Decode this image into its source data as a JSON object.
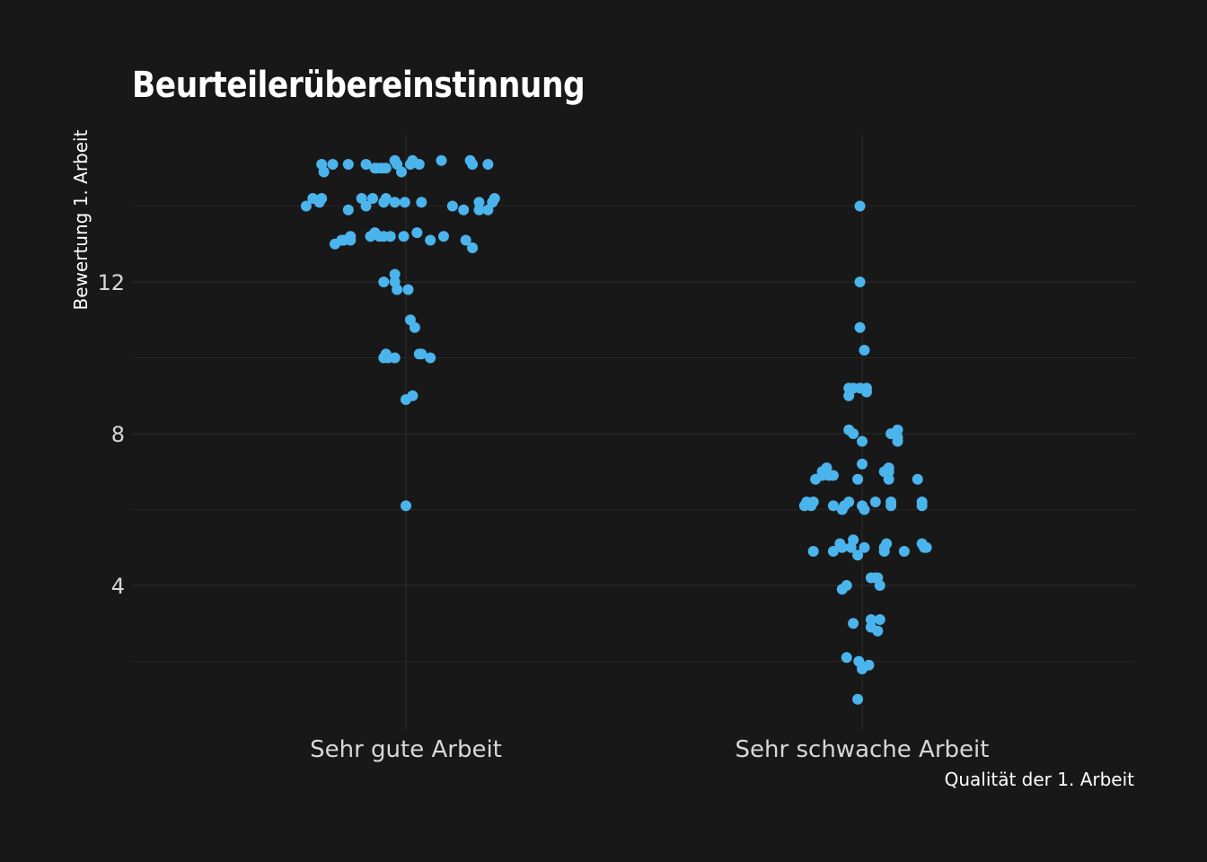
{
  "chart_data": {
    "type": "scatter",
    "title": "Beurteilerübereinstinnung",
    "xlabel": "Qualität der 1. Arbeit",
    "ylabel": "Bewertung 1. Arbeit",
    "categories": [
      "Sehr gute Arbeit",
      "Sehr schwache Arbeit"
    ],
    "y_ticks": [
      "4",
      "8",
      "12"
    ],
    "ylim": [
      0.5,
      16
    ],
    "grid": true,
    "point_color": "#4bb4ec",
    "background": "#181818",
    "series": [
      {
        "category": "Sehr gute Arbeit",
        "points": [
          [
            -0.45,
            14
          ],
          [
            -0.42,
            14.2
          ],
          [
            -0.39,
            14.1
          ],
          [
            -0.38,
            14.2
          ],
          [
            -0.38,
            15.1
          ],
          [
            -0.37,
            14.9
          ],
          [
            -0.33,
            15.1
          ],
          [
            -0.32,
            13
          ],
          [
            -0.29,
            13.1
          ],
          [
            -0.28,
            13.1
          ],
          [
            -0.26,
            15.1
          ],
          [
            -0.26,
            13.9
          ],
          [
            -0.25,
            13.1
          ],
          [
            -0.25,
            13.2
          ],
          [
            -0.2,
            14.2
          ],
          [
            -0.18,
            14
          ],
          [
            -0.18,
            15.1
          ],
          [
            -0.16,
            13.2
          ],
          [
            -0.15,
            14.2
          ],
          [
            -0.14,
            15
          ],
          [
            -0.14,
            13.3
          ],
          [
            -0.13,
            15
          ],
          [
            -0.12,
            13.2
          ],
          [
            -0.11,
            15
          ],
          [
            -0.1,
            14.1
          ],
          [
            -0.1,
            12
          ],
          [
            -0.1,
            13.2
          ],
          [
            -0.1,
            10
          ],
          [
            -0.09,
            10.1
          ],
          [
            -0.09,
            15
          ],
          [
            -0.09,
            14.2
          ],
          [
            -0.08,
            10
          ],
          [
            -0.07,
            13.2
          ],
          [
            -0.05,
            15.2
          ],
          [
            -0.05,
            14.1
          ],
          [
            -0.05,
            12.2
          ],
          [
            -0.05,
            12
          ],
          [
            -0.05,
            10
          ],
          [
            -0.04,
            11.8
          ],
          [
            -0.04,
            15.1
          ],
          [
            -0.02,
            14.9
          ],
          [
            -0.01,
            13.2
          ],
          [
            -0.005,
            14.1
          ],
          [
            0,
            8.9
          ],
          [
            0,
            6.1
          ],
          [
            0.01,
            11.8
          ],
          [
            0.02,
            15.1
          ],
          [
            0.02,
            11
          ],
          [
            0.03,
            15.2
          ],
          [
            0.03,
            9
          ],
          [
            0.04,
            10.8
          ],
          [
            0.05,
            13.3
          ],
          [
            0.06,
            15.1
          ],
          [
            0.06,
            10.1
          ],
          [
            0.07,
            14.1
          ],
          [
            0.07,
            10.1
          ],
          [
            0.11,
            13.1
          ],
          [
            0.11,
            10
          ],
          [
            0.16,
            15.2
          ],
          [
            0.17,
            13.2
          ],
          [
            0.21,
            14
          ],
          [
            0.26,
            13.9
          ],
          [
            0.27,
            13.1
          ],
          [
            0.29,
            15.2
          ],
          [
            0.3,
            15.1
          ],
          [
            0.3,
            12.9
          ],
          [
            0.33,
            14.1
          ],
          [
            0.33,
            13.9
          ],
          [
            0.37,
            15.1
          ],
          [
            0.37,
            13.9
          ],
          [
            0.39,
            14.1
          ],
          [
            0.4,
            14.2
          ]
        ]
      },
      {
        "category": "Sehr schwache Arbeit",
        "points": [
          [
            -0.26,
            6.1
          ],
          [
            -0.25,
            6.2
          ],
          [
            -0.23,
            6.1
          ],
          [
            -0.22,
            6.2
          ],
          [
            -0.22,
            4.9
          ],
          [
            -0.21,
            6.8
          ],
          [
            -0.18,
            6.9
          ],
          [
            -0.18,
            7
          ],
          [
            -0.16,
            7.1
          ],
          [
            -0.15,
            6.9
          ],
          [
            -0.13,
            6.9
          ],
          [
            -0.13,
            6.1
          ],
          [
            -0.13,
            4.9
          ],
          [
            -0.1,
            5.1
          ],
          [
            -0.09,
            3.9
          ],
          [
            -0.09,
            6
          ],
          [
            -0.09,
            5
          ],
          [
            -0.08,
            6.1
          ],
          [
            -0.07,
            4
          ],
          [
            -0.07,
            2.1
          ],
          [
            -0.06,
            8.1
          ],
          [
            -0.06,
            9.2
          ],
          [
            -0.06,
            9
          ],
          [
            -0.06,
            6.2
          ],
          [
            -0.05,
            5
          ],
          [
            -0.04,
            9.2
          ],
          [
            -0.04,
            3
          ],
          [
            -0.04,
            5.2
          ],
          [
            -0.04,
            8
          ],
          [
            -0.02,
            6.8
          ],
          [
            -0.02,
            4.8
          ],
          [
            -0.02,
            1
          ],
          [
            -0.015,
            2
          ],
          [
            -0.01,
            14
          ],
          [
            -0.01,
            12
          ],
          [
            -0.01,
            10.8
          ],
          [
            -0.01,
            9.2
          ],
          [
            0,
            1.8
          ],
          [
            0,
            7.2
          ],
          [
            0,
            7.8
          ],
          [
            0,
            6.1
          ],
          [
            0.01,
            10.2
          ],
          [
            0.01,
            6
          ],
          [
            0.01,
            5
          ],
          [
            0.02,
            9.2
          ],
          [
            0.02,
            9.1
          ],
          [
            0.03,
            1.9
          ],
          [
            0.04,
            4.2
          ],
          [
            0.04,
            3.1
          ],
          [
            0.04,
            2.9
          ],
          [
            0.06,
            4.2
          ],
          [
            0.06,
            6.2
          ],
          [
            0.07,
            4.2
          ],
          [
            0.07,
            2.8
          ],
          [
            0.08,
            4
          ],
          [
            0.08,
            3.1
          ],
          [
            0.1,
            5
          ],
          [
            0.1,
            4.9
          ],
          [
            0.1,
            7
          ],
          [
            0.11,
            5.1
          ],
          [
            0.12,
            7.1
          ],
          [
            0.12,
            7
          ],
          [
            0.12,
            6.8
          ],
          [
            0.13,
            6.2
          ],
          [
            0.13,
            8
          ],
          [
            0.13,
            6.1
          ],
          [
            0.16,
            7.9
          ],
          [
            0.16,
            7.8
          ],
          [
            0.16,
            8.1
          ],
          [
            0.19,
            4.9
          ],
          [
            0.25,
            6.8
          ],
          [
            0.27,
            6.1
          ],
          [
            0.27,
            6.2
          ],
          [
            0.27,
            5.1
          ],
          [
            0.28,
            5
          ],
          [
            0.29,
            5
          ]
        ]
      }
    ]
  }
}
